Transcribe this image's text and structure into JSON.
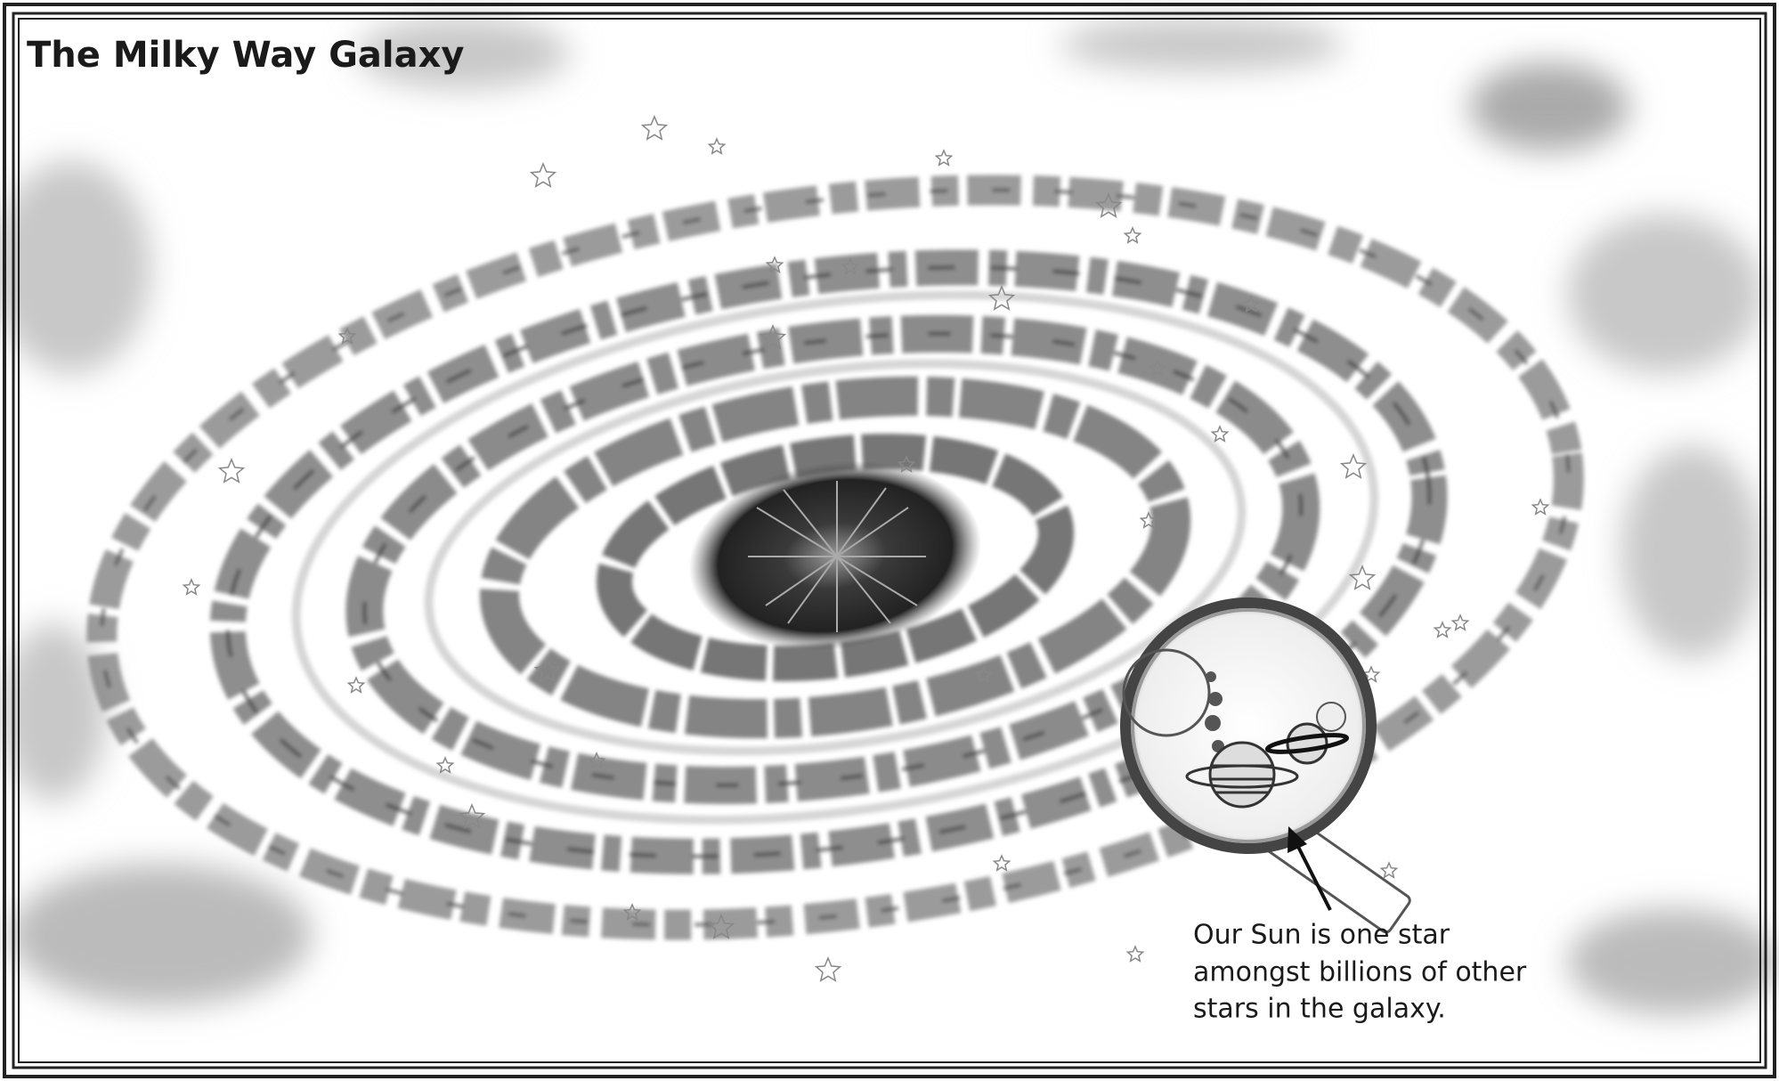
{
  "title": "The Milky Way Galaxy",
  "caption": [
    "Our Sun is one star",
    "amongst billions of other",
    "stars in the galaxy."
  ]
}
